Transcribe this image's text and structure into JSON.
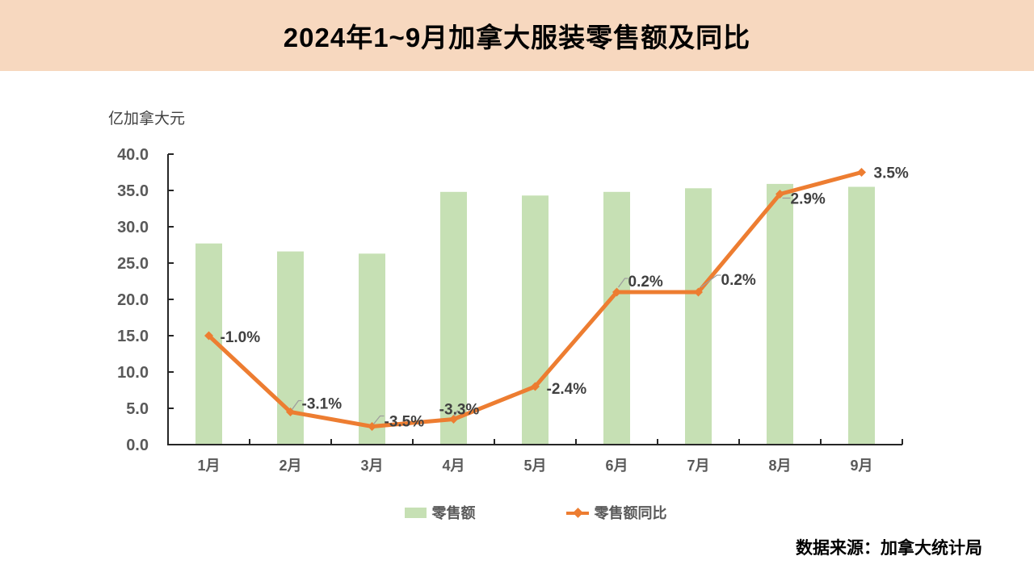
{
  "banner": {
    "title": "2024年1~9月加拿大服装零售额及同比"
  },
  "footer": {
    "source": "数据来源：加拿大统计局"
  },
  "colors": {
    "banner_bg": "#f7d8bf",
    "bar_fill": "#c6e0b4",
    "line_stroke": "#ed7d31",
    "axis": "#262626",
    "tick_label": "#595959",
    "data_label": "#404040",
    "leader": "#9e9e9e"
  },
  "chart_data": {
    "type": "bar+line combo",
    "title": "2024年1~9月加拿大服装零售额及同比",
    "unit_label": "亿加拿大元",
    "categories": [
      "1月",
      "2月",
      "3月",
      "4月",
      "5月",
      "6月",
      "7月",
      "8月",
      "9月"
    ],
    "series": [
      {
        "name": "零售额",
        "type": "bar",
        "axis": "primary",
        "color": "#c6e0b4",
        "values": [
          27.7,
          26.6,
          26.3,
          34.8,
          34.3,
          34.8,
          35.3,
          35.9,
          35.5
        ]
      },
      {
        "name": "零售额同比",
        "type": "line",
        "axis": "secondary",
        "color": "#ed7d31",
        "marker": "diamond",
        "values": [
          -1.0,
          -3.1,
          -3.5,
          -3.3,
          -2.4,
          0.2,
          0.2,
          2.9,
          3.5
        ],
        "point_labels": [
          "-1.0%",
          "-3.1%",
          "-3.5%",
          "-3.3%",
          "-2.4%",
          "0.2%",
          "0.2%",
          "2.9%",
          "3.5%"
        ]
      }
    ],
    "primary_axis": {
      "min": 0,
      "max": 40,
      "step": 5,
      "tick_labels": [
        "0.0",
        "5.0",
        "10.0",
        "15.0",
        "20.0",
        "25.0",
        "30.0",
        "35.0",
        "40.0"
      ]
    },
    "secondary_axis": {
      "min": -4,
      "max": 4,
      "visible": false
    },
    "grid": false,
    "legend_position": "bottom"
  }
}
